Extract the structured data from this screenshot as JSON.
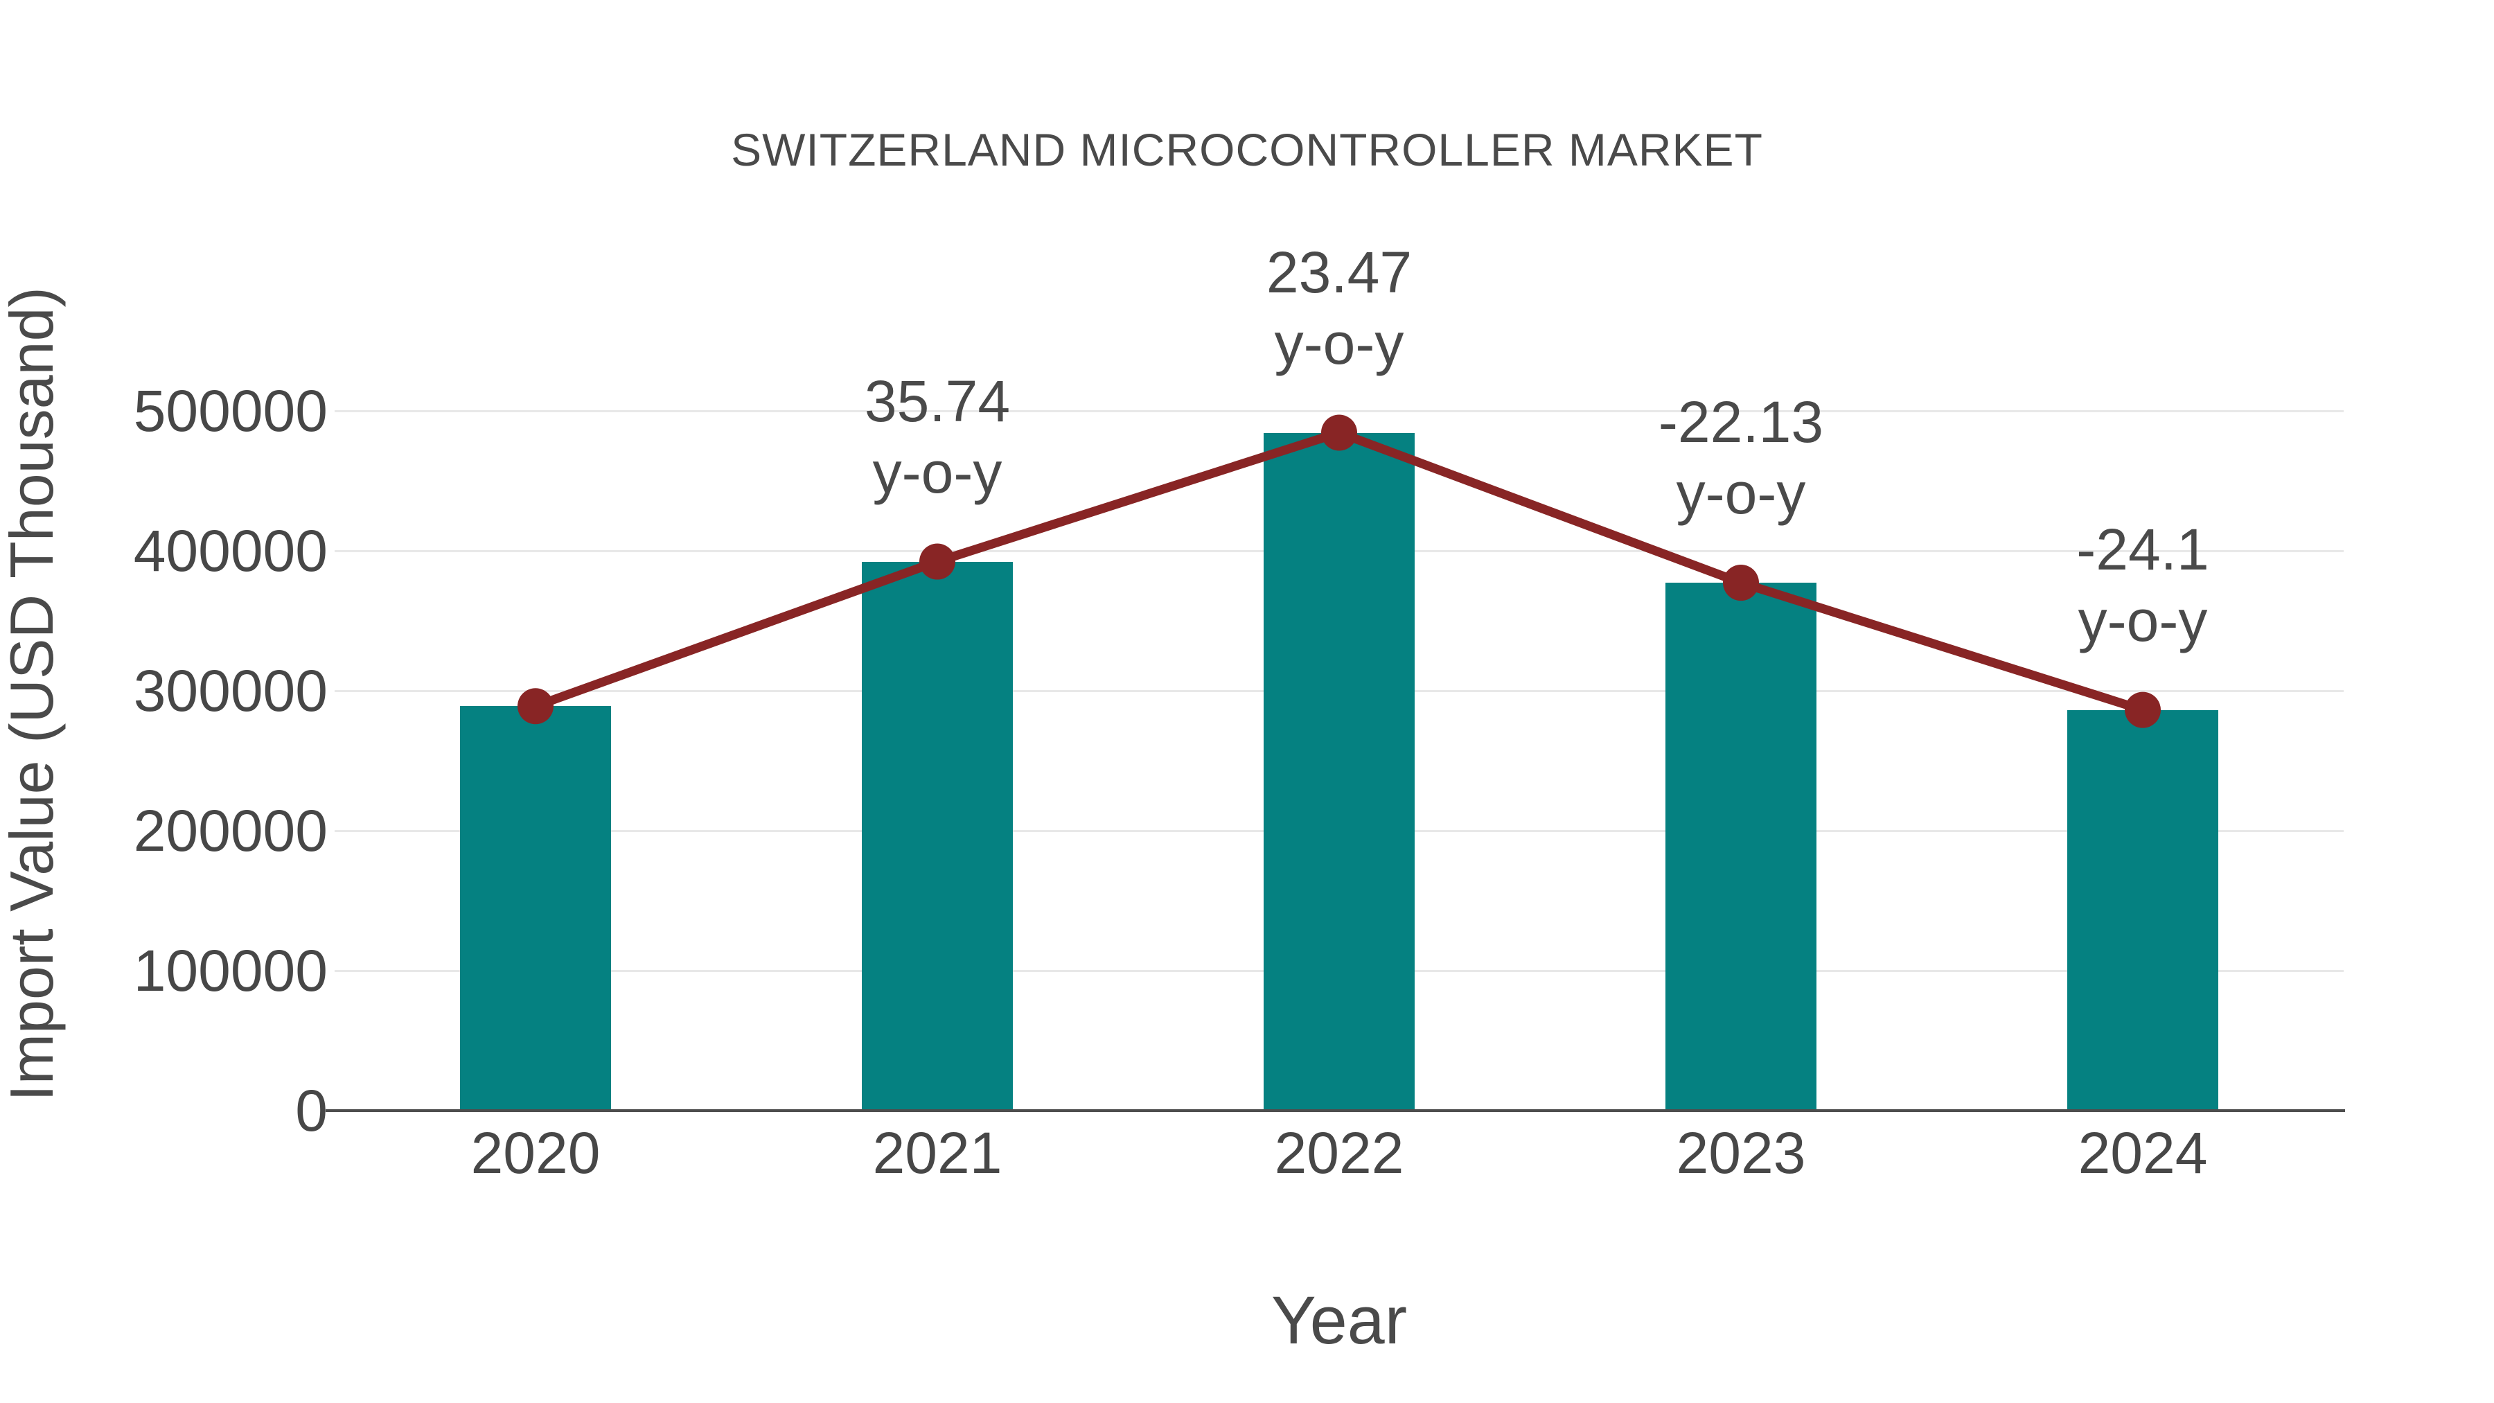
{
  "title": "SWITZERLAND MICROCONTROLLER MARKET",
  "axes": {
    "y_title": "Import Value (USD Thousand)",
    "x_title": "Year",
    "y_tick_labels": [
      "0",
      "100000",
      "200000",
      "300000",
      "400000",
      "500000"
    ],
    "y_tick_values": [
      0,
      100000,
      200000,
      300000,
      400000,
      500000
    ],
    "x_tick_labels": [
      "2020",
      "2021",
      "2022",
      "2023",
      "2024"
    ]
  },
  "colors": {
    "bar": "#058181",
    "line": "#882525",
    "marker": "#882525",
    "text": "#474747",
    "grid": "#e8e8e8",
    "axis_line": "#4d4d4d",
    "background": "#ffffff"
  },
  "chart_data": {
    "type": "bar",
    "title": "SWITZERLAND MICROCONTROLLER MARKET",
    "xlabel": "Year",
    "ylabel": "Import Value (USD Thousand)",
    "categories": [
      "2020",
      "2021",
      "2022",
      "2023",
      "2024"
    ],
    "values": [
      289000,
      392300,
      484400,
      377200,
      286300
    ],
    "ylim": [
      0,
      500000
    ],
    "grid": true,
    "legend": false,
    "overlay_line": {
      "type": "line",
      "follows_bar_tops": true,
      "marker": "circle",
      "yoy_percent": [
        null,
        35.74,
        23.47,
        -22.13,
        -24.1
      ]
    },
    "annotations": [
      {
        "category": "2021",
        "line1": "35.74",
        "line2": "y-o-y"
      },
      {
        "category": "2022",
        "line1": "23.47",
        "line2": "y-o-y"
      },
      {
        "category": "2023",
        "line1": "-22.13",
        "line2": "y-o-y"
      },
      {
        "category": "2024",
        "line1": "-24.1",
        "line2": "y-o-y"
      }
    ]
  }
}
